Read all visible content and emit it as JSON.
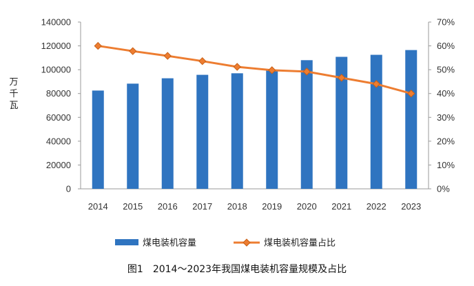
{
  "chart_data": {
    "type": "bar",
    "categories": [
      "2014",
      "2015",
      "2016",
      "2017",
      "2018",
      "2019",
      "2020",
      "2021",
      "2022",
      "2023"
    ],
    "series": [
      {
        "name": "煤电装机容量",
        "type": "bar",
        "axis": "left",
        "color": "#2f74c0",
        "values": [
          82500,
          88300,
          92800,
          95700,
          97000,
          100000,
          108000,
          110800,
          112500,
          116500
        ]
      },
      {
        "name": "煤电装机容量占比",
        "type": "line",
        "axis": "right",
        "color": "#ed7d31",
        "marker": "diamond",
        "values": [
          60.0,
          57.8,
          55.8,
          53.6,
          51.2,
          49.8,
          49.2,
          46.6,
          44.0,
          40.0
        ]
      }
    ],
    "ylabel_left": "万千瓦",
    "ylim_left": [
      0,
      140000
    ],
    "yticks_left": [
      "0",
      "20000",
      "40000",
      "60000",
      "80000",
      "100000",
      "120000",
      "140000"
    ],
    "ylim_right": [
      0,
      70
    ],
    "yticks_right": [
      "0%",
      "10%",
      "20%",
      "30%",
      "40%",
      "50%",
      "60%",
      "70%"
    ],
    "grid": false,
    "legend_position": "bottom",
    "caption": "图1　2014～2023年我国煤电装机容量规模及占比"
  }
}
